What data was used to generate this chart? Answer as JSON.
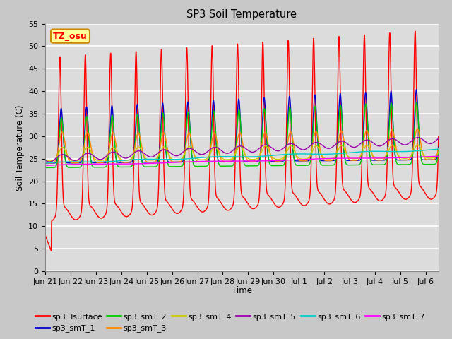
{
  "title": "SP3 Soil Temperature",
  "xlabel": "Time",
  "ylabel": "Soil Temperature (C)",
  "ylim": [
    0,
    55
  ],
  "yticks": [
    0,
    5,
    10,
    15,
    20,
    25,
    30,
    35,
    40,
    45,
    50,
    55
  ],
  "x_labels": [
    "Jun 21",
    "Jun 22",
    "Jun 23",
    "Jun 24",
    "Jun 25",
    "Jun 26",
    "Jun 27",
    "Jun 28",
    "Jun 29",
    "Jun 30",
    "Jul 1",
    "Jul 2",
    "Jul 3",
    "Jul 4",
    "Jul 5",
    "Jul 6"
  ],
  "annotation_text": "TZ_osu",
  "annotation_bg": "#FFFF99",
  "annotation_border": "#CC8800",
  "series_colors": {
    "sp3_Tsurface": "#FF0000",
    "sp3_smT_1": "#0000CC",
    "sp3_smT_2": "#00CC00",
    "sp3_smT_3": "#FF8800",
    "sp3_smT_4": "#CCCC00",
    "sp3_smT_5": "#9900AA",
    "sp3_smT_6": "#00CCCC",
    "sp3_smT_7": "#FF00FF"
  },
  "fig_bg": "#C8C8C8",
  "plot_bg": "#DCDCDC",
  "grid_color": "#FFFFFF",
  "n_days": 15.5,
  "samples_per_day": 96
}
